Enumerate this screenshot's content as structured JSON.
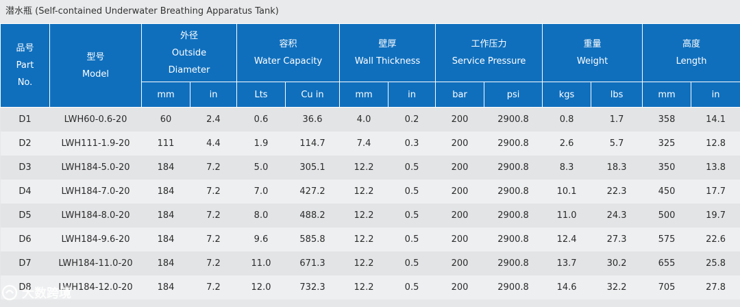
{
  "title": "潜水瓶 (Self-contained Underwater Breathing Apparatus Tank)",
  "headers": [
    {
      "zh": "品号",
      "en1": "Part",
      "en2": "No."
    },
    {
      "zh": "型号",
      "en1": "Model"
    },
    {
      "zh": "外径",
      "en1": "Outside",
      "en2": "Diameter"
    },
    {
      "zh": "容积",
      "en1": "Water Capacity"
    },
    {
      "zh": "壁厚",
      "en1": "Wall Thickness"
    },
    {
      "zh": "工作压力",
      "en1": "Service Pressure"
    },
    {
      "zh": "重量",
      "en1": "Weight"
    },
    {
      "zh": "高度",
      "en1": "Length"
    }
  ],
  "units": [
    "mm",
    "in",
    "Lts",
    "Cu in",
    "mm",
    "in",
    "bar",
    "psi",
    "kgs",
    "lbs",
    "mm",
    "in"
  ],
  "rows": [
    [
      "D1",
      "LWH60-0.6-20",
      "60",
      "2.4",
      "0.6",
      "36.6",
      "4.0",
      "0.2",
      "200",
      "2900.8",
      "0.8",
      "1.7",
      "358",
      "14.1"
    ],
    [
      "D2",
      "LWH111-1.9-20",
      "111",
      "4.4",
      "1.9",
      "114.7",
      "7.4",
      "0.3",
      "200",
      "2900.8",
      "2.6",
      "5.7",
      "325",
      "12.8"
    ],
    [
      "D3",
      "LWH184-5.0-20",
      "184",
      "7.2",
      "5.0",
      "305.1",
      "12.2",
      "0.5",
      "200",
      "2900.8",
      "8.3",
      "18.3",
      "350",
      "13.8"
    ],
    [
      "D4",
      "LWH184-7.0-20",
      "184",
      "7.2",
      "7.0",
      "427.2",
      "12.2",
      "0.5",
      "200",
      "2900.8",
      "10.1",
      "22.3",
      "450",
      "17.7"
    ],
    [
      "D5",
      "LWH184-8.0-20",
      "184",
      "7.2",
      "8.0",
      "488.2",
      "12.2",
      "0.5",
      "200",
      "2900.8",
      "11.0",
      "24.3",
      "500",
      "19.7"
    ],
    [
      "D6",
      "LWH184-9.6-20",
      "184",
      "7.2",
      "9.6",
      "585.8",
      "12.2",
      "0.5",
      "200",
      "2900.8",
      "12.4",
      "27.3",
      "575",
      "22.6"
    ],
    [
      "D7",
      "LWH184-11.0-20",
      "184",
      "7.2",
      "11.0",
      "671.3",
      "12.2",
      "0.5",
      "200",
      "2900.8",
      "13.7",
      "30.2",
      "655",
      "25.8"
    ],
    [
      "D8",
      "LWH184-12.0-20",
      "184",
      "7.2",
      "12.0",
      "732.3",
      "12.2",
      "0.5",
      "200",
      "2900.8",
      "14.6",
      "32.2",
      "705",
      "27.8"
    ]
  ],
  "watermark": "大数跨境",
  "colors": {
    "header_bg": "#0f6fbd",
    "row_odd": "#e3e4e6",
    "row_even": "#eeeff1"
  }
}
